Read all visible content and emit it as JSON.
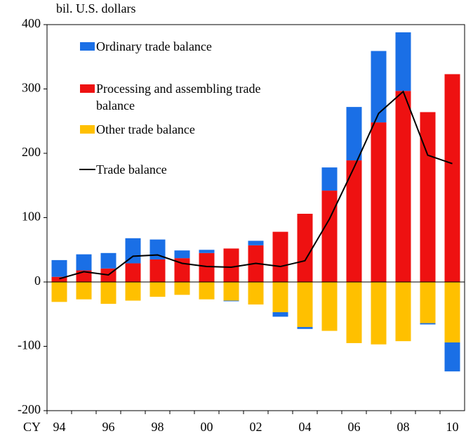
{
  "chart_data": {
    "type": "bar",
    "y_label": "bil. U.S. dollars",
    "x_label": "CY",
    "categories": [
      "94",
      null,
      "96",
      null,
      "98",
      null,
      "00",
      null,
      "02",
      null,
      "04",
      null,
      "06",
      null,
      "08",
      null,
      "10"
    ],
    "series": [
      {
        "name": "Ordinary trade balance",
        "type": "bar",
        "color": "#1a6fe6",
        "values": [
          26,
          25,
          24,
          39,
          31,
          12,
          5,
          -1,
          7,
          -7,
          -3,
          36,
          83,
          111,
          91,
          -2,
          -45
        ]
      },
      {
        "name": "Processing and assembling trade balance",
        "type": "bar",
        "color": "#ee1111",
        "values": [
          8,
          18,
          21,
          29,
          35,
          37,
          45,
          52,
          57,
          78,
          106,
          142,
          189,
          248,
          297,
          264,
          323
        ]
      },
      {
        "name": "Other trade balance",
        "type": "bar",
        "color": "#ffc000",
        "values": [
          -31,
          -27,
          -34,
          -29,
          -23,
          -20,
          -27,
          -29,
          -35,
          -47,
          -70,
          -76,
          -95,
          -97,
          -92,
          -64,
          -94
        ]
      },
      {
        "name": "Trade balance",
        "type": "line",
        "color": "#000000",
        "values": [
          5,
          16,
          11,
          40,
          42,
          29,
          24,
          23,
          29,
          24,
          33,
          98,
          178,
          262,
          296,
          197,
          184
        ]
      }
    ],
    "ylim": [
      -200,
      400
    ],
    "yticks": [
      -200,
      -100,
      0,
      100,
      200,
      300,
      400
    ],
    "legend": "upper-left"
  }
}
